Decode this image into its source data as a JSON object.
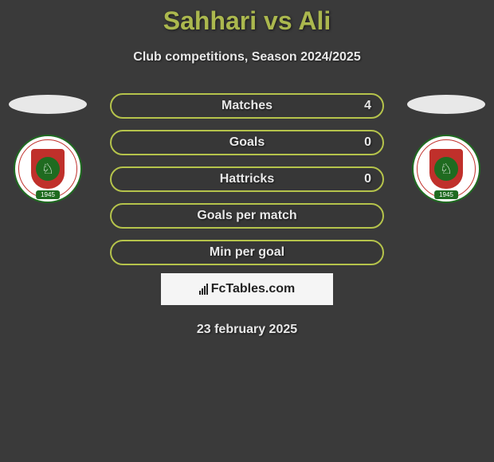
{
  "title": "Sahhari vs Ali",
  "subtitle": "Club competitions, Season 2024/2025",
  "colors": {
    "background": "#3a3a3a",
    "accent": "#abb84e",
    "bar_border": "#b5c34b",
    "text": "#e8e8e8",
    "logo_green": "#1f6b20",
    "logo_red": "#c0302b",
    "logo_bg": "#ffffff",
    "ellipse_bg": "#e8e8e8",
    "watermark_bg": "#f5f5f5",
    "watermark_text": "#222222"
  },
  "left_team": {
    "logo_name": "ETTIFAQ F.C",
    "year": "1945"
  },
  "right_team": {
    "logo_name": "ETTIFAQ F.C",
    "year": "1945"
  },
  "stats": [
    {
      "label": "Matches",
      "value": "4"
    },
    {
      "label": "Goals",
      "value": "0"
    },
    {
      "label": "Hattricks",
      "value": "0"
    },
    {
      "label": "Goals per match",
      "value": ""
    },
    {
      "label": "Min per goal",
      "value": ""
    }
  ],
  "watermark": "FcTables.com",
  "date": "23 february 2025"
}
